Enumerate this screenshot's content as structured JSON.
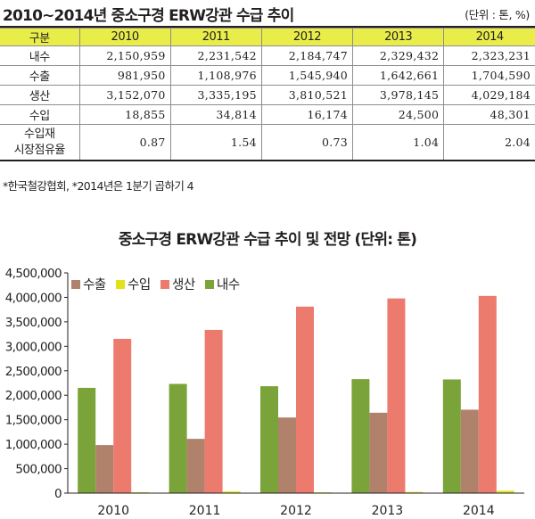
{
  "table": {
    "title": "2010~2014년 중소구경 ERW강관 수급 추이",
    "unit": "(단위 : 톤, %)",
    "header": [
      "구분",
      "2010",
      "2011",
      "2012",
      "2013",
      "2014"
    ],
    "rows": [
      {
        "label": "내수",
        "label2": "",
        "values": [
          "2,150,959",
          "2,231,542",
          "2,184,747",
          "2,329,432",
          "2,323,231"
        ]
      },
      {
        "label": "수출",
        "label2": "",
        "values": [
          "981,950",
          "1,108,976",
          "1,545,940",
          "1,642,661",
          "1,704,590"
        ]
      },
      {
        "label": "생산",
        "label2": "",
        "values": [
          "3,152,070",
          "3,335,195",
          "3,810,521",
          "3,978,145",
          "4,029,184"
        ]
      },
      {
        "label": "수입",
        "label2": "",
        "values": [
          "18,855",
          "34,814",
          "16,174",
          "24,500",
          "48,301"
        ]
      },
      {
        "label": "수입재",
        "label2": "시장점유율",
        "values": [
          "0.87",
          "1.54",
          "0.73",
          "1.04",
          "2.04"
        ]
      }
    ],
    "source": "*한국철강협회, *2014년은 1분기 곱하기 4"
  },
  "chart_data": {
    "type": "bar",
    "title": "중소구경 ERW강관 수급 추이 및 전망 (단위: 톤)",
    "categories": [
      "2010",
      "2011",
      "2012",
      "2013",
      "2014"
    ],
    "series": [
      {
        "name": "내수",
        "color": "#7aa33a",
        "values": [
          2150959,
          2231542,
          2184747,
          2329432,
          2323231
        ]
      },
      {
        "name": "수출",
        "color": "#b0826b",
        "values": [
          981950,
          1108976,
          1545940,
          1642661,
          1704590
        ]
      },
      {
        "name": "생산",
        "color": "#ec7b6e",
        "values": [
          3152070,
          3335195,
          3810521,
          3978145,
          4029184
        ]
      },
      {
        "name": "수입",
        "color": "#e3e21a",
        "values": [
          18855,
          34814,
          16174,
          24500,
          48301
        ]
      }
    ],
    "legend_order": [
      "수출",
      "수입",
      "생산",
      "내수"
    ],
    "legend_position": "top-left",
    "ylim": [
      0,
      4500000
    ],
    "yticks": [
      0,
      500000,
      1000000,
      1500000,
      2000000,
      2500000,
      3000000,
      3500000,
      4000000,
      4500000
    ],
    "ytick_labels": [
      "0",
      "500,000",
      "1,000,000",
      "1,500,000",
      "2,000,000",
      "2,500,000",
      "3,000,000",
      "3,500,000",
      "4,000,000",
      "4,500,000"
    ],
    "grid": false
  }
}
